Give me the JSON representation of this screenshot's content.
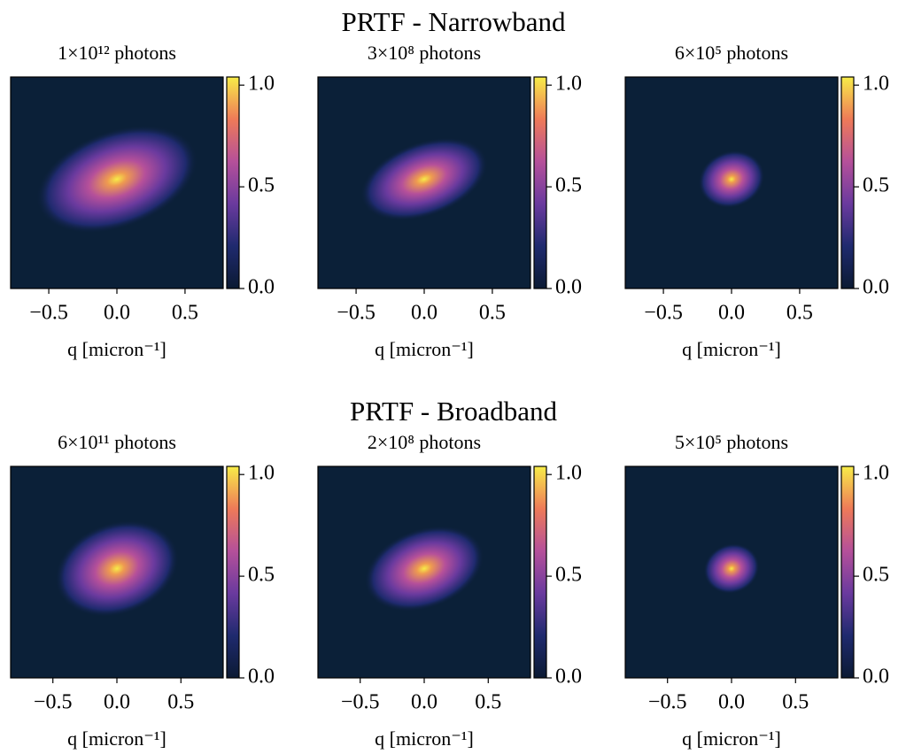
{
  "suptitles": [
    "PRTF - Narrowband",
    "PRTF - Broadband"
  ],
  "chart_data": [
    {
      "type": "heatmap",
      "title": "1×10¹² photons",
      "xlabel": "q [micron⁻¹]",
      "xlim": [
        -0.78,
        0.78
      ],
      "xticks": [
        {
          "value": -0.5,
          "label": "−0.5"
        },
        {
          "value": 0,
          "label": "0.0"
        },
        {
          "value": 0.5,
          "label": "0.5"
        }
      ],
      "clim": [
        0,
        1.04
      ],
      "cticks": [
        {
          "value": 0,
          "label": "0.0"
        },
        {
          "value": 0.5,
          "label": "0.5"
        },
        {
          "value": 1,
          "label": "1.0"
        }
      ]
    },
    {
      "type": "heatmap",
      "title": "3×10⁸ photons",
      "xlabel": "q [micron⁻¹]",
      "xlim": [
        -0.78,
        0.78
      ],
      "xticks": [
        {
          "value": -0.5,
          "label": "−0.5"
        },
        {
          "value": 0,
          "label": "0.0"
        },
        {
          "value": 0.5,
          "label": "0.5"
        }
      ],
      "clim": [
        0,
        1.04
      ],
      "cticks": [
        {
          "value": 0,
          "label": "0.0"
        },
        {
          "value": 0.5,
          "label": "0.5"
        },
        {
          "value": 1,
          "label": "1.0"
        }
      ]
    },
    {
      "type": "heatmap",
      "title": "6×10⁵ photons",
      "xlabel": "q [micron⁻¹]",
      "xlim": [
        -0.78,
        0.78
      ],
      "xticks": [
        {
          "value": -0.5,
          "label": "−0.5"
        },
        {
          "value": 0,
          "label": "0.0"
        },
        {
          "value": 0.5,
          "label": "0.5"
        }
      ],
      "clim": [
        0,
        1.04
      ],
      "cticks": [
        {
          "value": 0,
          "label": "0.0"
        },
        {
          "value": 0.5,
          "label": "0.5"
        },
        {
          "value": 1,
          "label": "1.0"
        }
      ]
    },
    {
      "type": "heatmap",
      "title": "6×10¹¹ photons",
      "xlabel": "q [micron⁻¹]",
      "xlim": [
        -0.83,
        0.83
      ],
      "xticks": [
        {
          "value": -0.5,
          "label": "−0.5"
        },
        {
          "value": 0,
          "label": "0.0"
        },
        {
          "value": 0.5,
          "label": "0.5"
        }
      ],
      "clim": [
        0,
        1.04
      ],
      "cticks": [
        {
          "value": 0,
          "label": "0.0"
        },
        {
          "value": 0.5,
          "label": "0.5"
        },
        {
          "value": 1,
          "label": "1.0"
        }
      ]
    },
    {
      "type": "heatmap",
      "title": "2×10⁸ photons",
      "xlabel": "q [micron⁻¹]",
      "xlim": [
        -0.83,
        0.83
      ],
      "xticks": [
        {
          "value": -0.5,
          "label": "−0.5"
        },
        {
          "value": 0,
          "label": "0.0"
        },
        {
          "value": 0.5,
          "label": "0.5"
        }
      ],
      "clim": [
        0,
        1.04
      ],
      "cticks": [
        {
          "value": 0,
          "label": "0.0"
        },
        {
          "value": 0.5,
          "label": "0.5"
        },
        {
          "value": 1,
          "label": "1.0"
        }
      ]
    },
    {
      "type": "heatmap",
      "title": "5×10⁵ photons",
      "xlabel": "q [micron⁻¹]",
      "xlim": [
        -0.83,
        0.83
      ],
      "xticks": [
        {
          "value": -0.5,
          "label": "−0.5"
        },
        {
          "value": 0,
          "label": "0.0"
        },
        {
          "value": 0.5,
          "label": "0.5"
        }
      ],
      "clim": [
        0,
        1.04
      ],
      "cticks": [
        {
          "value": 0,
          "label": "0.0"
        },
        {
          "value": 0.5,
          "label": "0.5"
        },
        {
          "value": 1,
          "label": "1.0"
        }
      ]
    }
  ]
}
